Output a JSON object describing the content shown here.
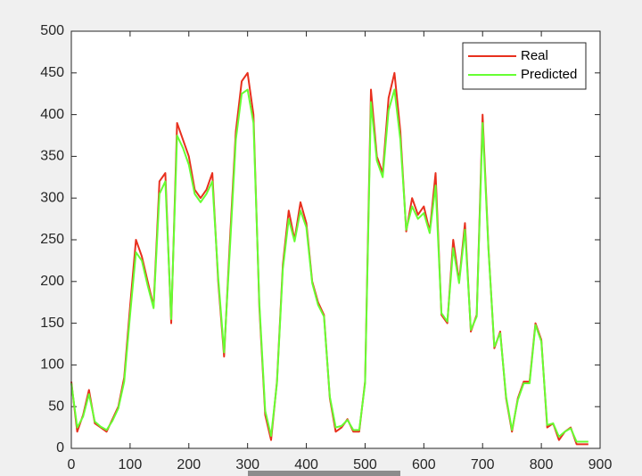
{
  "chart_data": {
    "type": "line",
    "x": [
      0,
      10,
      20,
      30,
      40,
      50,
      60,
      70,
      80,
      90,
      100,
      110,
      120,
      130,
      140,
      150,
      160,
      170,
      180,
      190,
      200,
      210,
      220,
      230,
      240,
      250,
      260,
      270,
      280,
      290,
      300,
      310,
      320,
      330,
      340,
      350,
      360,
      370,
      380,
      390,
      400,
      410,
      420,
      430,
      440,
      450,
      460,
      470,
      480,
      490,
      500,
      510,
      520,
      530,
      540,
      550,
      560,
      570,
      580,
      590,
      600,
      610,
      620,
      630,
      640,
      650,
      660,
      670,
      680,
      690,
      700,
      710,
      720,
      730,
      740,
      750,
      760,
      770,
      780,
      790,
      800,
      810,
      820,
      830,
      840,
      850,
      860,
      870,
      880
    ],
    "series": [
      {
        "name": "Real",
        "color": "#e8301e",
        "values": [
          80,
          20,
          40,
          70,
          30,
          25,
          20,
          35,
          50,
          85,
          170,
          250,
          230,
          200,
          170,
          320,
          330,
          150,
          390,
          370,
          350,
          310,
          300,
          310,
          330,
          200,
          110,
          250,
          380,
          440,
          450,
          400,
          170,
          40,
          10,
          80,
          220,
          285,
          250,
          295,
          270,
          200,
          175,
          160,
          60,
          20,
          25,
          35,
          20,
          20,
          80,
          430,
          350,
          330,
          420,
          450,
          380,
          260,
          300,
          280,
          290,
          260,
          330,
          160,
          150,
          250,
          200,
          270,
          140,
          160,
          400,
          240,
          120,
          140,
          60,
          20,
          60,
          80,
          80,
          150,
          130,
          25,
          30,
          10,
          20,
          25,
          5,
          5,
          5
        ]
      },
      {
        "name": "Predicted",
        "color": "#66ff33",
        "values": [
          78,
          25,
          38,
          65,
          32,
          26,
          22,
          33,
          48,
          80,
          160,
          235,
          225,
          195,
          168,
          305,
          320,
          155,
          375,
          360,
          340,
          305,
          295,
          305,
          320,
          205,
          115,
          240,
          370,
          425,
          430,
          390,
          175,
          45,
          15,
          78,
          215,
          275,
          248,
          285,
          265,
          198,
          172,
          158,
          62,
          25,
          27,
          34,
          22,
          22,
          78,
          415,
          345,
          325,
          405,
          430,
          370,
          262,
          290,
          275,
          282,
          258,
          315,
          162,
          152,
          240,
          198,
          262,
          142,
          158,
          390,
          238,
          122,
          138,
          62,
          22,
          58,
          78,
          78,
          148,
          128,
          28,
          30,
          14,
          20,
          24,
          8,
          8,
          8
        ]
      }
    ],
    "xlim": [
      0,
      900
    ],
    "ylim": [
      0,
      500
    ],
    "xticks": [
      0,
      100,
      200,
      300,
      400,
      500,
      600,
      700,
      800,
      900
    ],
    "yticks": [
      0,
      50,
      100,
      150,
      200,
      250,
      300,
      350,
      400,
      450,
      500
    ],
    "legend": "top-right"
  }
}
